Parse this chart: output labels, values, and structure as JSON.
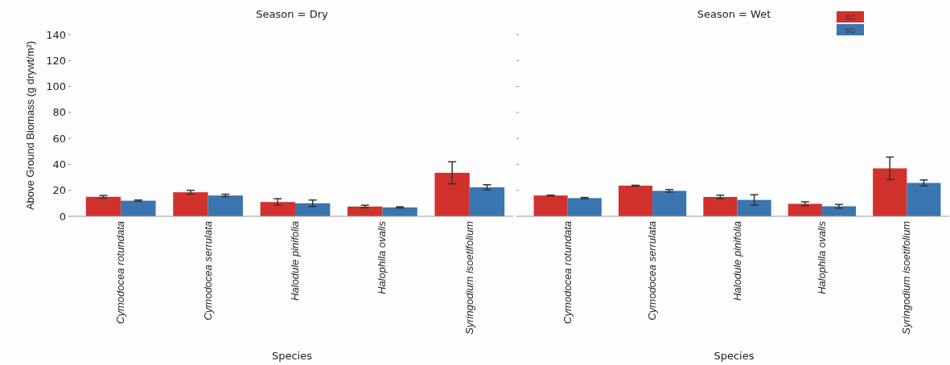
{
  "chart_data": [
    {
      "type": "bar",
      "title": "Season = Dry",
      "xlabel": "Species",
      "ylabel": "Above Ground Biomass (g drywt/m²)",
      "categories": [
        "Cymodocea rotundata",
        "Cymodocea serrulata",
        "Halodule pinifolia",
        "Halophila ovalis",
        "Syringodium isoetifolium"
      ],
      "ylim": [
        0,
        140
      ],
      "yticks": [
        0,
        20,
        40,
        60,
        80,
        100,
        120,
        140
      ],
      "grid": false,
      "legend": false,
      "series": [
        {
          "color": "#d0312d",
          "values": [
            15,
            18.5,
            11,
            7.5,
            33.5
          ],
          "errors": [
            1,
            1.5,
            2.5,
            1,
            8.5
          ]
        },
        {
          "color": "#3a75af",
          "values": [
            12,
            16,
            10,
            6.8,
            22.3
          ],
          "errors": [
            0.5,
            1,
            2.5,
            0.5,
            2
          ]
        }
      ]
    },
    {
      "type": "bar",
      "title": "Season = Wet",
      "xlabel": "Species",
      "categories": [
        "Cymodocea rotundata",
        "Cymodocea serrulata",
        "Halodule pinifolia",
        "Halophila ovalis",
        "Syringodium isoetifolium"
      ],
      "ylim": [
        0,
        140
      ],
      "yticks": [
        {
          "value": 0,
          "label": null
        },
        {
          "value": 20,
          "label": null
        },
        {
          "value": 40,
          "label": null
        },
        {
          "value": 60,
          "label": null
        },
        {
          "value": 80,
          "label": null
        },
        {
          "value": 100,
          "label": null
        },
        {
          "value": 120,
          "label": null
        },
        {
          "value": 140,
          "label": null
        }
      ],
      "tick_labels": "x",
      "grid": false,
      "legend": "top right",
      "series": [
        {
          "name": "SC",
          "color": "#d0312d",
          "values": [
            16,
            23.6,
            14.9,
            9.6,
            36.9
          ],
          "errors": [
            0.3,
            0.3,
            1.4,
            1.5,
            8.7
          ]
        },
        {
          "name": "SG",
          "color": "#3a75af",
          "values": [
            14,
            19.6,
            12.6,
            7.7,
            25.7
          ],
          "errors": [
            0.5,
            1,
            4,
            1.4,
            2.3
          ]
        }
      ]
    }
  ]
}
